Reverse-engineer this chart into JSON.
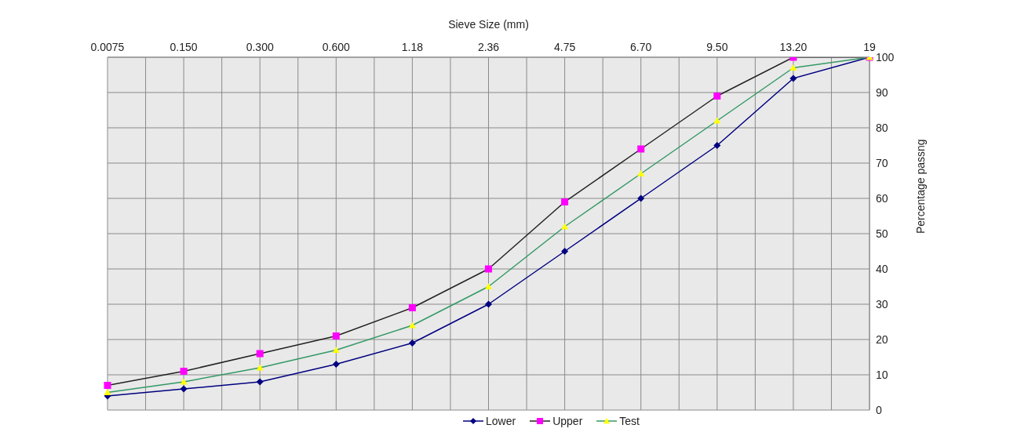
{
  "chart_data": {
    "type": "line",
    "xlabel": "Sieve Size (mm)",
    "ylabel": "Percentage passng",
    "categories": [
      "0.0075",
      "0.150",
      "0.300",
      "0.600",
      "1.18",
      "2.36",
      "4.75",
      "6.70",
      "9.50",
      "13.20",
      "19"
    ],
    "series": [
      {
        "name": "Lower",
        "color": "#000080",
        "marker": "diamond",
        "values": [
          4,
          6,
          8,
          13,
          19,
          30,
          45,
          60,
          75,
          94,
          100
        ]
      },
      {
        "name": "Upper",
        "color": "#222222",
        "marker": "square",
        "colors": [
          "#ff00ff",
          "#ff00ff",
          "#ff00ff",
          "#ff00ff",
          "#ff00ff",
          "#ff00ff",
          "#ff00ff",
          "#ff00ff",
          "#ff00ff",
          "#ff00ff",
          "#ff00ff"
        ],
        "values": [
          7,
          11,
          16,
          21,
          29,
          40,
          59,
          74,
          89,
          100,
          100
        ]
      },
      {
        "name": "Test",
        "color": "#339966",
        "marker": "triangle",
        "colors": [
          "#ffff00",
          "#ffff00",
          "#ffff00",
          "#ffff00",
          "#ffff00",
          "#ffff00",
          "#ffff00",
          "#ffff00",
          "#ffff00",
          "#ffff00",
          "#ffff00"
        ],
        "values": [
          5,
          8,
          12,
          17,
          24,
          35,
          52,
          67,
          82,
          97,
          100
        ]
      }
    ],
    "ylim": [
      0,
      100
    ],
    "yticks": [
      0,
      10,
      20,
      30,
      40,
      50,
      60,
      70,
      80,
      90,
      100
    ],
    "grid": true,
    "legend": "bottom"
  }
}
